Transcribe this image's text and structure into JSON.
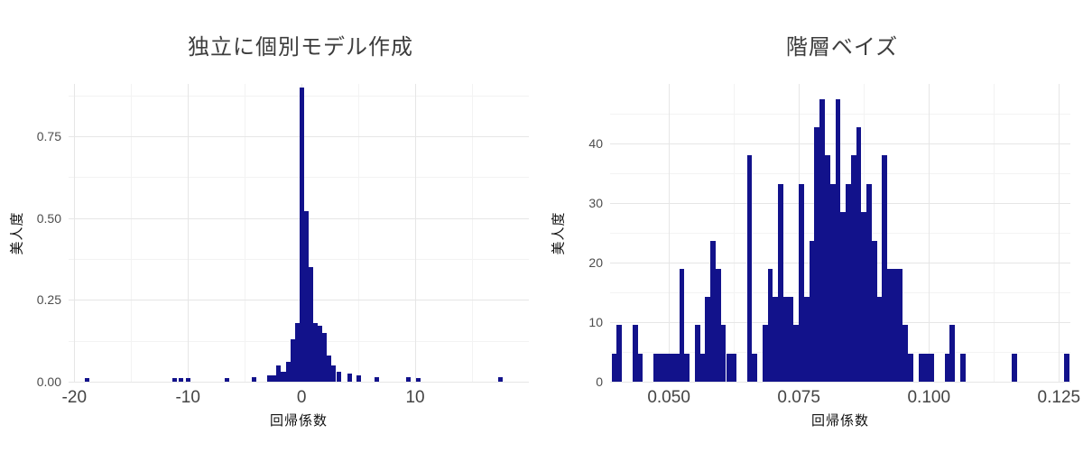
{
  "page": {
    "background": "#ffffff"
  },
  "chart_data": [
    {
      "type": "bar",
      "subtype": "histogram",
      "title": "独立に個別モデル作成",
      "xlabel": "回帰係数",
      "ylabel": "美人度",
      "bar_color": "#12128b",
      "grid": "on",
      "legend": "none",
      "xlim": [
        -20.5,
        20
      ],
      "ylim": [
        0,
        0.91
      ],
      "binwidth": 0.4,
      "xticks": [
        {
          "v": -20,
          "label": "-20"
        },
        {
          "v": -10,
          "label": "-10"
        },
        {
          "v": 0,
          "label": "0"
        },
        {
          "v": 10,
          "label": "10"
        }
      ],
      "yticks": [
        {
          "v": 0.0,
          "label": "0.00"
        },
        {
          "v": 0.25,
          "label": "0.25"
        },
        {
          "v": 0.5,
          "label": "0.50"
        },
        {
          "v": 0.75,
          "label": "0.75"
        }
      ],
      "minor_xticks": [
        -15,
        -5,
        5,
        15
      ],
      "minor_yticks": [
        0.125,
        0.375,
        0.625,
        0.875
      ],
      "bars": [
        {
          "x": -18.9,
          "h": 0.012
        },
        {
          "x": -11.2,
          "h": 0.012
        },
        {
          "x": -10.6,
          "h": 0.012
        },
        {
          "x": -10.0,
          "h": 0.012
        },
        {
          "x": -6.6,
          "h": 0.012
        },
        {
          "x": -4.2,
          "h": 0.015
        },
        {
          "x": -2.8,
          "h": 0.02
        },
        {
          "x": -2.4,
          "h": 0.018
        },
        {
          "x": -2.0,
          "h": 0.05
        },
        {
          "x": -1.6,
          "h": 0.03
        },
        {
          "x": -1.2,
          "h": 0.06
        },
        {
          "x": -0.8,
          "h": 0.13
        },
        {
          "x": -0.4,
          "h": 0.18
        },
        {
          "x": 0.0,
          "h": 0.9
        },
        {
          "x": 0.4,
          "h": 0.52
        },
        {
          "x": 0.8,
          "h": 0.35
        },
        {
          "x": 1.2,
          "h": 0.18
        },
        {
          "x": 1.6,
          "h": 0.17
        },
        {
          "x": 2.0,
          "h": 0.15
        },
        {
          "x": 2.4,
          "h": 0.08
        },
        {
          "x": 2.8,
          "h": 0.05
        },
        {
          "x": 3.3,
          "h": 0.03
        },
        {
          "x": 4.2,
          "h": 0.025
        },
        {
          "x": 5.0,
          "h": 0.02
        },
        {
          "x": 6.6,
          "h": 0.015
        },
        {
          "x": 9.4,
          "h": 0.015
        },
        {
          "x": 10.3,
          "h": 0.012
        },
        {
          "x": 17.5,
          "h": 0.015
        }
      ]
    },
    {
      "type": "bar",
      "subtype": "histogram",
      "title": "階層ベイズ",
      "xlabel": "回帰係数",
      "ylabel": "美人度",
      "bar_color": "#12128b",
      "grid": "on",
      "legend": "none",
      "xlim": [
        0.0387,
        0.1272
      ],
      "ylim": [
        0,
        50
      ],
      "binwidth": 0.001,
      "xticks": [
        {
          "v": 0.05,
          "label": "0.050"
        },
        {
          "v": 0.075,
          "label": "0.075"
        },
        {
          "v": 0.1,
          "label": "0.100"
        },
        {
          "v": 0.125,
          "label": "0.125"
        }
      ],
      "yticks": [
        {
          "v": 0,
          "label": "0"
        },
        {
          "v": 10,
          "label": "10"
        },
        {
          "v": 20,
          "label": "20"
        },
        {
          "v": 30,
          "label": "30"
        },
        {
          "v": 40,
          "label": "40"
        }
      ],
      "minor_xticks": [
        0.0625,
        0.0875,
        0.1125
      ],
      "minor_yticks": [
        5,
        15,
        25,
        35,
        45
      ],
      "bars": [
        {
          "x": 0.0395,
          "h": 4.7
        },
        {
          "x": 0.0405,
          "h": 9.5
        },
        {
          "x": 0.0435,
          "h": 9.5
        },
        {
          "x": 0.0445,
          "h": 4.7
        },
        {
          "x": 0.0475,
          "h": 4.7
        },
        {
          "x": 0.0485,
          "h": 4.7
        },
        {
          "x": 0.0495,
          "h": 4.7
        },
        {
          "x": 0.0505,
          "h": 4.7
        },
        {
          "x": 0.0515,
          "h": 4.7
        },
        {
          "x": 0.0525,
          "h": 19
        },
        {
          "x": 0.0535,
          "h": 4.7
        },
        {
          "x": 0.0555,
          "h": 9.5
        },
        {
          "x": 0.0565,
          "h": 4.7
        },
        {
          "x": 0.0575,
          "h": 14.2
        },
        {
          "x": 0.0585,
          "h": 23.7
        },
        {
          "x": 0.0595,
          "h": 19
        },
        {
          "x": 0.0605,
          "h": 9.5
        },
        {
          "x": 0.0615,
          "h": 4.7
        },
        {
          "x": 0.0625,
          "h": 4.7
        },
        {
          "x": 0.0655,
          "h": 38
        },
        {
          "x": 0.0665,
          "h": 4.7
        },
        {
          "x": 0.0685,
          "h": 9.5
        },
        {
          "x": 0.0695,
          "h": 19
        },
        {
          "x": 0.0705,
          "h": 14.2
        },
        {
          "x": 0.0715,
          "h": 33.2
        },
        {
          "x": 0.0725,
          "h": 14.2
        },
        {
          "x": 0.0735,
          "h": 14.2
        },
        {
          "x": 0.0745,
          "h": 9.5
        },
        {
          "x": 0.0755,
          "h": 33.2
        },
        {
          "x": 0.0765,
          "h": 14.2
        },
        {
          "x": 0.0775,
          "h": 23.7
        },
        {
          "x": 0.0785,
          "h": 42.7
        },
        {
          "x": 0.0795,
          "h": 47.5
        },
        {
          "x": 0.0805,
          "h": 38
        },
        {
          "x": 0.0815,
          "h": 33.2
        },
        {
          "x": 0.0825,
          "h": 47.5
        },
        {
          "x": 0.0835,
          "h": 28.5
        },
        {
          "x": 0.0845,
          "h": 33.2
        },
        {
          "x": 0.0855,
          "h": 38
        },
        {
          "x": 0.0865,
          "h": 42.7
        },
        {
          "x": 0.0875,
          "h": 28.5
        },
        {
          "x": 0.0885,
          "h": 33.2
        },
        {
          "x": 0.0895,
          "h": 23.7
        },
        {
          "x": 0.0905,
          "h": 14.2
        },
        {
          "x": 0.0915,
          "h": 38
        },
        {
          "x": 0.0925,
          "h": 19
        },
        {
          "x": 0.0935,
          "h": 19
        },
        {
          "x": 0.0945,
          "h": 19
        },
        {
          "x": 0.0955,
          "h": 9.5
        },
        {
          "x": 0.0965,
          "h": 4.7
        },
        {
          "x": 0.0985,
          "h": 4.7
        },
        {
          "x": 0.0995,
          "h": 4.7
        },
        {
          "x": 0.1005,
          "h": 4.7
        },
        {
          "x": 0.1035,
          "h": 4.7
        },
        {
          "x": 0.1045,
          "h": 9.5
        },
        {
          "x": 0.1065,
          "h": 4.7
        },
        {
          "x": 0.1165,
          "h": 4.7
        },
        {
          "x": 0.1265,
          "h": 4.7
        }
      ]
    }
  ]
}
